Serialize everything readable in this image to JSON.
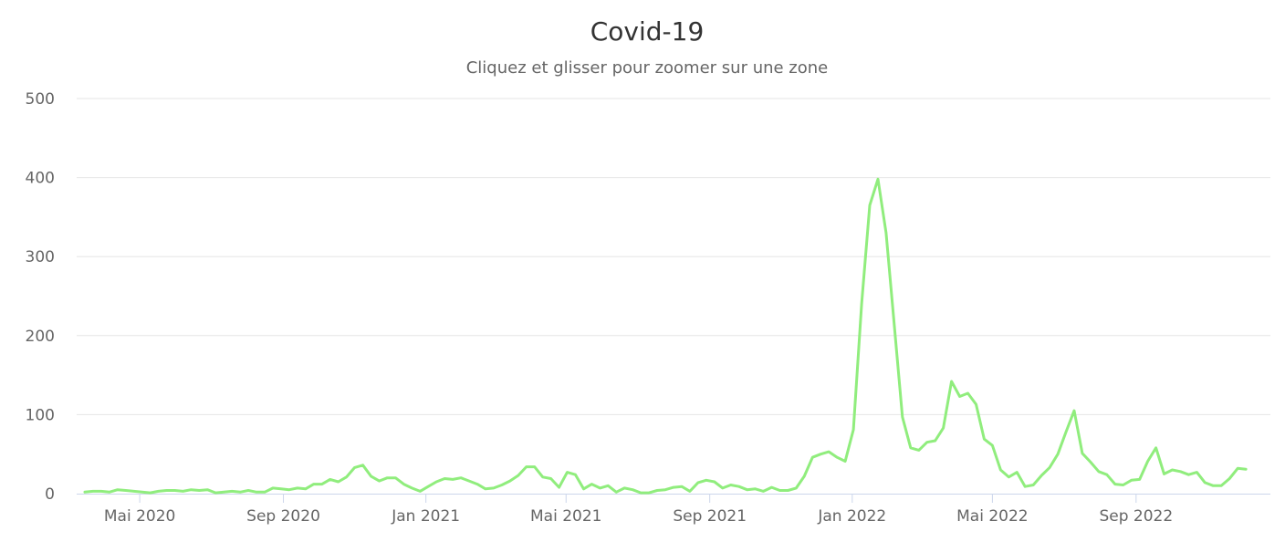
{
  "chart_data": {
    "type": "line",
    "title": "Covid-19",
    "subtitle": "Cliquez et glisser pour zoomer sur une zone",
    "xlabel": "",
    "ylabel": "",
    "ylim": [
      0,
      500
    ],
    "yticks": [
      0,
      100,
      200,
      300,
      400,
      500
    ],
    "xrange": [
      "2020-03-08",
      "2022-12-25"
    ],
    "xticks": [
      {
        "label": "Mai 2020",
        "date": "2020-05-01"
      },
      {
        "label": "Sep 2020",
        "date": "2020-09-01"
      },
      {
        "label": "Jan 2021",
        "date": "2021-01-01"
      },
      {
        "label": "Mai 2021",
        "date": "2021-05-01"
      },
      {
        "label": "Sep 2021",
        "date": "2021-09-01"
      },
      {
        "label": "Jan 2022",
        "date": "2022-01-01"
      },
      {
        "label": "Mai 2022",
        "date": "2022-05-01"
      },
      {
        "label": "Sep 2022",
        "date": "2022-09-01"
      }
    ],
    "grid": true,
    "legend": "none",
    "series": [
      {
        "color": "#90ed7d",
        "points": [
          [
            "2020-03-15",
            2
          ],
          [
            "2020-03-22",
            3
          ],
          [
            "2020-03-29",
            3
          ],
          [
            "2020-04-05",
            2
          ],
          [
            "2020-04-12",
            5
          ],
          [
            "2020-04-19",
            4
          ],
          [
            "2020-04-26",
            3
          ],
          [
            "2020-05-03",
            2
          ],
          [
            "2020-05-10",
            1
          ],
          [
            "2020-05-17",
            3
          ],
          [
            "2020-05-24",
            4
          ],
          [
            "2020-05-31",
            4
          ],
          [
            "2020-06-07",
            3
          ],
          [
            "2020-06-14",
            5
          ],
          [
            "2020-06-21",
            4
          ],
          [
            "2020-06-28",
            5
          ],
          [
            "2020-07-05",
            1
          ],
          [
            "2020-07-12",
            2
          ],
          [
            "2020-07-19",
            3
          ],
          [
            "2020-07-26",
            2
          ],
          [
            "2020-08-02",
            4
          ],
          [
            "2020-08-09",
            2
          ],
          [
            "2020-08-16",
            2
          ],
          [
            "2020-08-23",
            7
          ],
          [
            "2020-08-30",
            6
          ],
          [
            "2020-09-06",
            5
          ],
          [
            "2020-09-13",
            7
          ],
          [
            "2020-09-20",
            6
          ],
          [
            "2020-09-27",
            12
          ],
          [
            "2020-10-04",
            12
          ],
          [
            "2020-10-11",
            18
          ],
          [
            "2020-10-18",
            15
          ],
          [
            "2020-10-25",
            21
          ],
          [
            "2020-11-01",
            33
          ],
          [
            "2020-11-08",
            36
          ],
          [
            "2020-11-15",
            22
          ],
          [
            "2020-11-22",
            16
          ],
          [
            "2020-11-29",
            20
          ],
          [
            "2020-12-06",
            20
          ],
          [
            "2020-12-13",
            12
          ],
          [
            "2020-12-20",
            7
          ],
          [
            "2020-12-27",
            3
          ],
          [
            "2021-01-03",
            9
          ],
          [
            "2021-01-10",
            15
          ],
          [
            "2021-01-17",
            19
          ],
          [
            "2021-01-24",
            18
          ],
          [
            "2021-01-31",
            20
          ],
          [
            "2021-02-07",
            16
          ],
          [
            "2021-02-14",
            12
          ],
          [
            "2021-02-21",
            6
          ],
          [
            "2021-02-28",
            7
          ],
          [
            "2021-03-07",
            11
          ],
          [
            "2021-03-14",
            16
          ],
          [
            "2021-03-21",
            23
          ],
          [
            "2021-03-28",
            34
          ],
          [
            "2021-04-04",
            34
          ],
          [
            "2021-04-11",
            21
          ],
          [
            "2021-04-18",
            19
          ],
          [
            "2021-04-25",
            8
          ],
          [
            "2021-05-02",
            27
          ],
          [
            "2021-05-09",
            24
          ],
          [
            "2021-05-16",
            6
          ],
          [
            "2021-05-23",
            12
          ],
          [
            "2021-05-30",
            7
          ],
          [
            "2021-06-06",
            10
          ],
          [
            "2021-06-13",
            2
          ],
          [
            "2021-06-20",
            7
          ],
          [
            "2021-06-27",
            5
          ],
          [
            "2021-07-04",
            1
          ],
          [
            "2021-07-11",
            1
          ],
          [
            "2021-07-18",
            4
          ],
          [
            "2021-07-25",
            5
          ],
          [
            "2021-08-01",
            8
          ],
          [
            "2021-08-08",
            9
          ],
          [
            "2021-08-15",
            3
          ],
          [
            "2021-08-22",
            14
          ],
          [
            "2021-08-29",
            17
          ],
          [
            "2021-09-05",
            15
          ],
          [
            "2021-09-12",
            7
          ],
          [
            "2021-09-19",
            11
          ],
          [
            "2021-09-26",
            9
          ],
          [
            "2021-10-03",
            5
          ],
          [
            "2021-10-10",
            6
          ],
          [
            "2021-10-17",
            3
          ],
          [
            "2021-10-24",
            8
          ],
          [
            "2021-10-31",
            4
          ],
          [
            "2021-11-07",
            4
          ],
          [
            "2021-11-14",
            7
          ],
          [
            "2021-11-21",
            22
          ],
          [
            "2021-11-28",
            46
          ],
          [
            "2021-12-05",
            50
          ],
          [
            "2021-12-12",
            53
          ],
          [
            "2021-12-19",
            46
          ],
          [
            "2021-12-26",
            41
          ],
          [
            "2022-01-02",
            81
          ],
          [
            "2022-01-09",
            240
          ],
          [
            "2022-01-16",
            365
          ],
          [
            "2022-01-23",
            398
          ],
          [
            "2022-01-30",
            330
          ],
          [
            "2022-02-06",
            213
          ],
          [
            "2022-02-13",
            97
          ],
          [
            "2022-02-20",
            58
          ],
          [
            "2022-02-27",
            55
          ],
          [
            "2022-03-06",
            65
          ],
          [
            "2022-03-13",
            67
          ],
          [
            "2022-03-20",
            83
          ],
          [
            "2022-03-27",
            142
          ],
          [
            "2022-04-03",
            123
          ],
          [
            "2022-04-10",
            127
          ],
          [
            "2022-04-17",
            113
          ],
          [
            "2022-04-24",
            69
          ],
          [
            "2022-05-01",
            61
          ],
          [
            "2022-05-08",
            30
          ],
          [
            "2022-05-15",
            21
          ],
          [
            "2022-05-22",
            27
          ],
          [
            "2022-05-29",
            9
          ],
          [
            "2022-06-05",
            11
          ],
          [
            "2022-06-12",
            23
          ],
          [
            "2022-06-19",
            33
          ],
          [
            "2022-06-26",
            50
          ],
          [
            "2022-07-03",
            78
          ],
          [
            "2022-07-10",
            105
          ],
          [
            "2022-07-17",
            51
          ],
          [
            "2022-07-24",
            40
          ],
          [
            "2022-07-31",
            28
          ],
          [
            "2022-08-07",
            24
          ],
          [
            "2022-08-14",
            12
          ],
          [
            "2022-08-21",
            11
          ],
          [
            "2022-08-28",
            17
          ],
          [
            "2022-09-04",
            18
          ],
          [
            "2022-09-11",
            41
          ],
          [
            "2022-09-18",
            58
          ],
          [
            "2022-09-25",
            25
          ],
          [
            "2022-10-02",
            30
          ],
          [
            "2022-10-09",
            28
          ],
          [
            "2022-10-16",
            24
          ],
          [
            "2022-10-23",
            27
          ],
          [
            "2022-10-30",
            14
          ],
          [
            "2022-11-06",
            10
          ],
          [
            "2022-11-13",
            10
          ],
          [
            "2022-11-20",
            19
          ],
          [
            "2022-11-27",
            32
          ],
          [
            "2022-12-04",
            31
          ]
        ]
      }
    ]
  }
}
